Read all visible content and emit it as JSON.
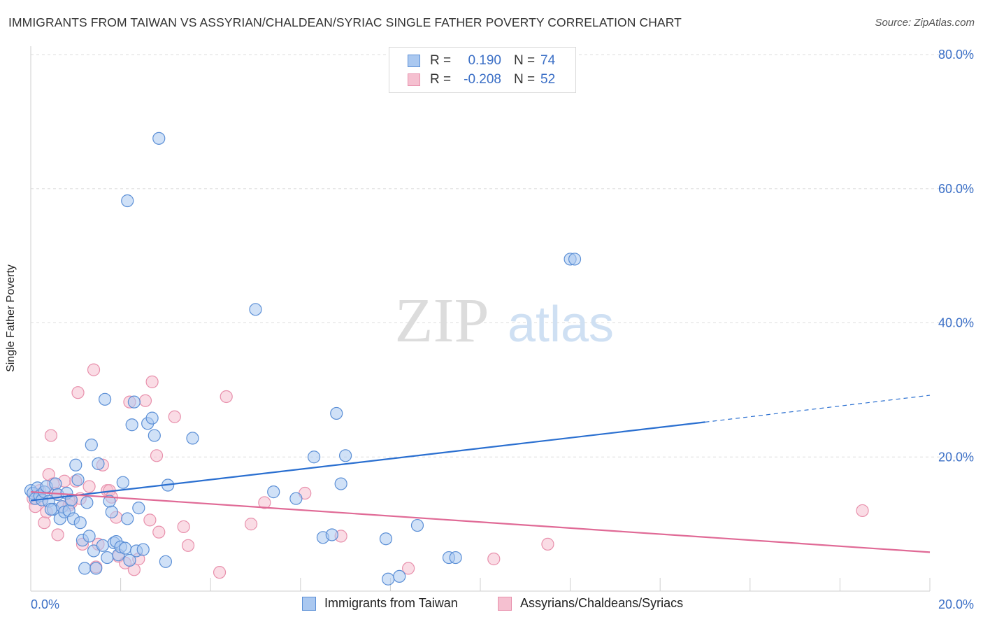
{
  "header": {
    "title": "IMMIGRANTS FROM TAIWAN VS ASSYRIAN/CHALDEAN/SYRIAC SINGLE FATHER POVERTY CORRELATION CHART",
    "source": "Source: ZipAtlas.com"
  },
  "watermark": {
    "zip": "ZIP",
    "atlas": "atlas"
  },
  "legend": {
    "r_label": "R =",
    "n_label": "N =",
    "rows": [
      {
        "r": "0.190",
        "n": "74"
      },
      {
        "r": "-0.208",
        "n": "52"
      }
    ]
  },
  "colors": {
    "blue_fill": "#aac8f0",
    "blue_stroke": "#5b8fd6",
    "blue_line": "#2a6fd0",
    "pink_fill": "#f5c0d0",
    "pink_stroke": "#e890ac",
    "pink_line": "#e06a96",
    "axis_text": "#3b6fc6",
    "grid": "#dddddd"
  },
  "chart_data": {
    "type": "scatter",
    "title": "IMMIGRANTS FROM TAIWAN VS ASSYRIAN/CHALDEAN/SYRIAC SINGLE FATHER POVERTY CORRELATION CHART",
    "xlabel": "",
    "ylabel": "Single Father Poverty",
    "xlim": [
      0,
      20
    ],
    "ylim": [
      0,
      80
    ],
    "x_tick_labels": [
      "0.0%",
      "20.0%"
    ],
    "y_tick_labels": [
      "20.0%",
      "40.0%",
      "60.0%",
      "80.0%"
    ],
    "y_tick_values": [
      20,
      40,
      60,
      80
    ],
    "x_minor_ticks": [
      0,
      2,
      4,
      6,
      8,
      10,
      12,
      14,
      16,
      18,
      20
    ],
    "grid": true,
    "legend_position": "top-center",
    "series": [
      {
        "name": "Immigrants from Taiwan",
        "color": "blue",
        "trend": {
          "x0": 0,
          "y0": 13.5,
          "x1": 15.0,
          "y1": 25.2,
          "dash_to_x": 20,
          "dash_to_y": 29.2
        },
        "points": [
          [
            0.0,
            15.0
          ],
          [
            0.05,
            14.6
          ],
          [
            0.1,
            13.8
          ],
          [
            0.15,
            15.4
          ],
          [
            0.2,
            14.2
          ],
          [
            0.25,
            13.6
          ],
          [
            0.3,
            14.8
          ],
          [
            0.35,
            15.6
          ],
          [
            0.4,
            13.4
          ],
          [
            0.5,
            12.2
          ],
          [
            0.55,
            16.0
          ],
          [
            0.6,
            14.4
          ],
          [
            0.65,
            10.8
          ],
          [
            0.7,
            12.6
          ],
          [
            0.75,
            11.8
          ],
          [
            0.8,
            14.6
          ],
          [
            0.85,
            12.0
          ],
          [
            0.9,
            13.6
          ],
          [
            0.95,
            10.8
          ],
          [
            1.0,
            18.8
          ],
          [
            1.05,
            16.6
          ],
          [
            1.1,
            10.2
          ],
          [
            1.15,
            7.6
          ],
          [
            1.2,
            3.4
          ],
          [
            1.3,
            8.2
          ],
          [
            1.35,
            21.8
          ],
          [
            1.4,
            6.0
          ],
          [
            1.45,
            3.4
          ],
          [
            1.5,
            19.0
          ],
          [
            1.6,
            6.8
          ],
          [
            1.65,
            28.6
          ],
          [
            1.7,
            5.0
          ],
          [
            1.75,
            13.4
          ],
          [
            1.8,
            11.8
          ],
          [
            1.85,
            7.2
          ],
          [
            1.9,
            7.4
          ],
          [
            1.95,
            5.4
          ],
          [
            2.0,
            6.6
          ],
          [
            2.05,
            16.2
          ],
          [
            2.1,
            6.4
          ],
          [
            2.15,
            10.8
          ],
          [
            2.2,
            4.6
          ],
          [
            2.25,
            24.8
          ],
          [
            2.3,
            28.2
          ],
          [
            2.35,
            6.0
          ],
          [
            2.4,
            12.4
          ],
          [
            2.5,
            6.2
          ],
          [
            2.6,
            25.0
          ],
          [
            2.7,
            25.8
          ],
          [
            2.75,
            23.2
          ],
          [
            2.85,
            67.5
          ],
          [
            3.0,
            4.4
          ],
          [
            3.05,
            15.8
          ],
          [
            3.6,
            22.8
          ],
          [
            2.15,
            58.2
          ],
          [
            5.0,
            42.0
          ],
          [
            5.4,
            14.8
          ],
          [
            5.9,
            13.8
          ],
          [
            6.3,
            20.0
          ],
          [
            6.5,
            8.0
          ],
          [
            6.7,
            8.4
          ],
          [
            6.8,
            26.5
          ],
          [
            6.9,
            16.0
          ],
          [
            7.0,
            20.2
          ],
          [
            7.9,
            7.8
          ],
          [
            7.95,
            1.8
          ],
          [
            8.2,
            2.2
          ],
          [
            8.6,
            9.8
          ],
          [
            9.3,
            5.0
          ],
          [
            9.45,
            5.0
          ],
          [
            12.0,
            49.5
          ],
          [
            12.1,
            49.5
          ],
          [
            0.45,
            12.2
          ],
          [
            1.25,
            13.2
          ]
        ]
      },
      {
        "name": "Assyrians/Chaldeans/Syriacs",
        "color": "pink",
        "trend": {
          "x0": 0,
          "y0": 14.8,
          "x1": 20,
          "y1": 5.8
        },
        "points": [
          [
            0.05,
            13.8
          ],
          [
            0.1,
            12.6
          ],
          [
            0.15,
            14.4
          ],
          [
            0.2,
            15.0
          ],
          [
            0.25,
            13.6
          ],
          [
            0.3,
            10.2
          ],
          [
            0.35,
            11.8
          ],
          [
            0.4,
            17.4
          ],
          [
            0.45,
            23.2
          ],
          [
            0.5,
            16.0
          ],
          [
            0.55,
            14.6
          ],
          [
            0.6,
            8.4
          ],
          [
            0.7,
            12.6
          ],
          [
            0.75,
            16.4
          ],
          [
            0.85,
            12.8
          ],
          [
            0.9,
            13.2
          ],
          [
            1.0,
            16.4
          ],
          [
            1.05,
            29.6
          ],
          [
            1.1,
            13.8
          ],
          [
            1.15,
            7.0
          ],
          [
            1.3,
            15.6
          ],
          [
            1.4,
            33.0
          ],
          [
            1.45,
            3.6
          ],
          [
            1.5,
            7.0
          ],
          [
            1.6,
            18.8
          ],
          [
            1.7,
            15.0
          ],
          [
            1.75,
            15.0
          ],
          [
            1.8,
            14.0
          ],
          [
            1.9,
            11.0
          ],
          [
            1.95,
            5.2
          ],
          [
            2.1,
            4.2
          ],
          [
            2.2,
            28.2
          ],
          [
            2.3,
            3.2
          ],
          [
            2.4,
            4.8
          ],
          [
            2.55,
            28.4
          ],
          [
            2.65,
            10.6
          ],
          [
            2.7,
            31.2
          ],
          [
            2.8,
            20.2
          ],
          [
            2.85,
            8.8
          ],
          [
            3.2,
            26.0
          ],
          [
            3.4,
            9.6
          ],
          [
            3.5,
            6.8
          ],
          [
            4.2,
            2.8
          ],
          [
            4.35,
            29.0
          ],
          [
            4.9,
            10.0
          ],
          [
            5.2,
            13.2
          ],
          [
            6.1,
            14.6
          ],
          [
            6.9,
            8.2
          ],
          [
            8.4,
            3.4
          ],
          [
            10.3,
            4.8
          ],
          [
            11.5,
            7.0
          ],
          [
            18.5,
            12.0
          ]
        ]
      }
    ]
  },
  "bottom_legend": {
    "items": [
      {
        "label": "Immigrants from Taiwan"
      },
      {
        "label": "Assyrians/Chaldeans/Syriacs"
      }
    ]
  }
}
